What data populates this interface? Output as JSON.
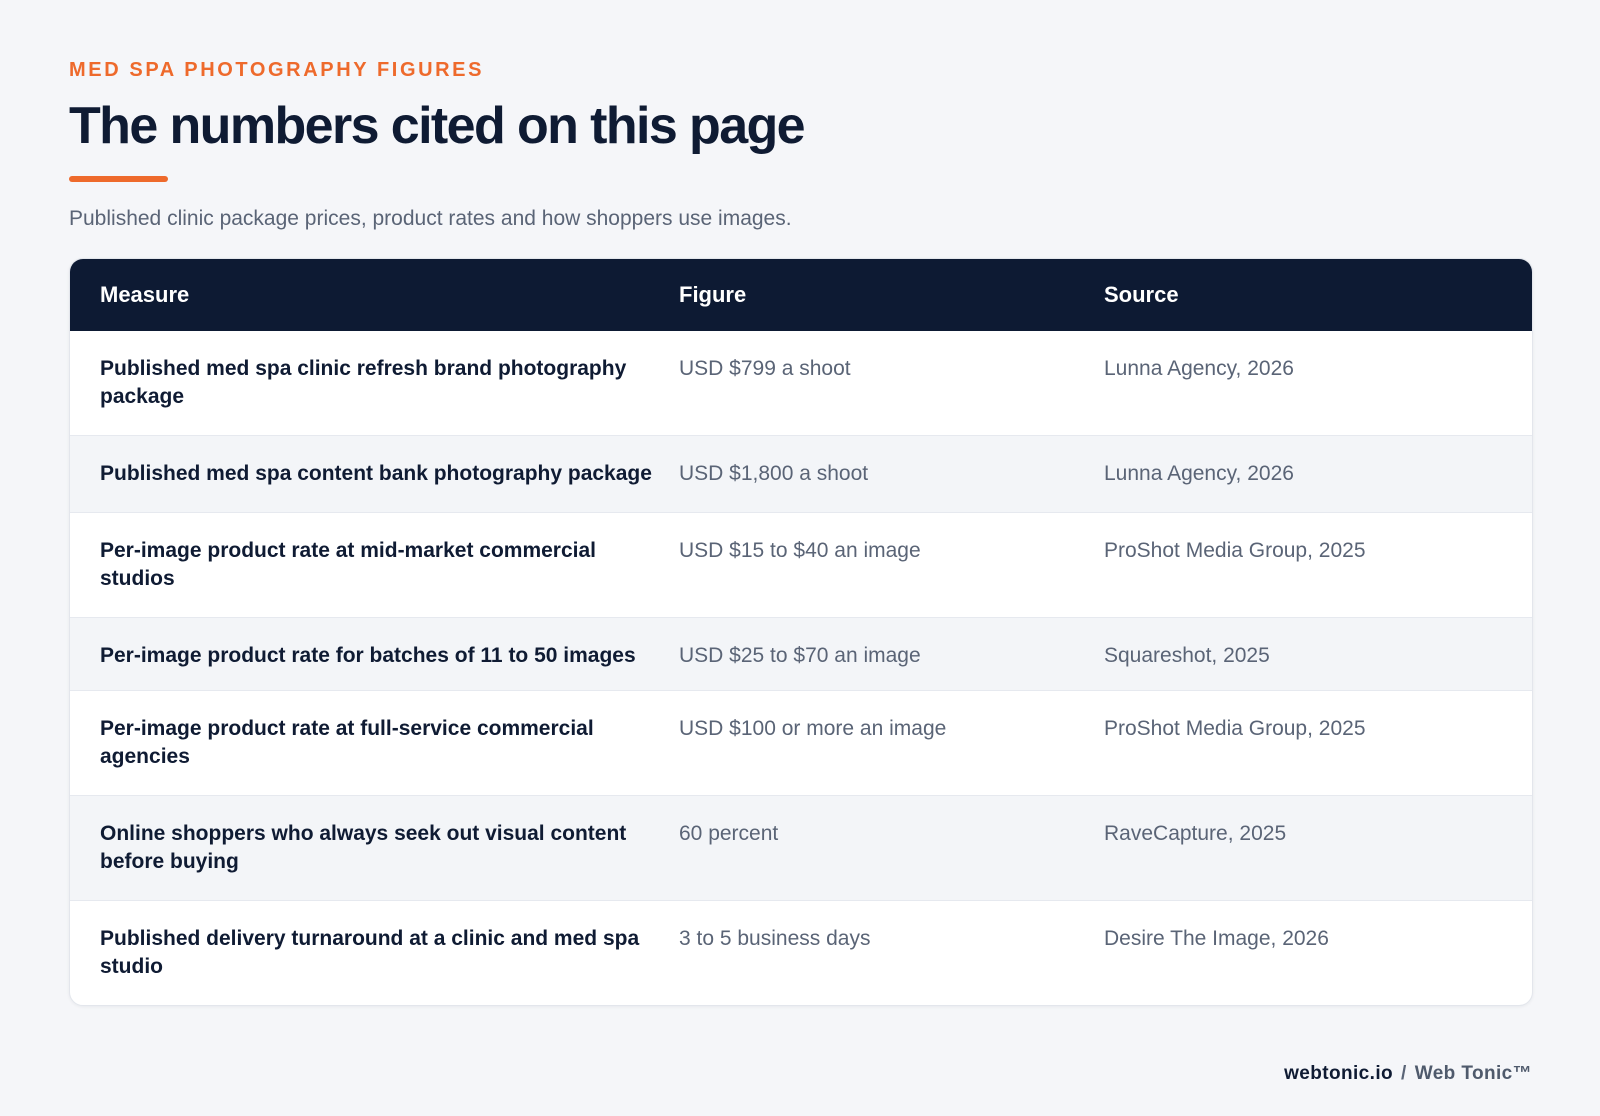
{
  "header": {
    "eyebrow": "MED SPA PHOTOGRAPHY FIGURES",
    "title": "The numbers cited on this page",
    "subtitle": "Published clinic package prices, product rates and how shoppers use images."
  },
  "table": {
    "columns": [
      "Measure",
      "Figure",
      "Source"
    ],
    "rows": [
      {
        "measure": "Published med spa clinic refresh brand photography package",
        "figure": "USD $799 a shoot",
        "source": "Lunna Agency, 2026"
      },
      {
        "measure": "Published med spa content bank photography package",
        "figure": "USD $1,800 a shoot",
        "source": "Lunna Agency, 2026"
      },
      {
        "measure": "Per-image product rate at mid-market commercial studios",
        "figure": "USD $15 to $40 an image",
        "source": "ProShot Media Group, 2025"
      },
      {
        "measure": "Per-image product rate for batches of 11 to 50 images",
        "figure": "USD $25 to $70 an image",
        "source": "Squareshot, 2025"
      },
      {
        "measure": "Per-image product rate at full-service commercial agencies",
        "figure": "USD $100 or more an image",
        "source": "ProShot Media Group, 2025"
      },
      {
        "measure": "Online shoppers who always seek out visual content before buying",
        "figure": "60 percent",
        "source": "RaveCapture, 2025"
      },
      {
        "measure": "Published delivery turnaround at a clinic and med spa studio",
        "figure": "3 to 5 business days",
        "source": "Desire The Image, 2026"
      }
    ]
  },
  "footer": {
    "domain": "webtonic.io",
    "separator": "/",
    "brand": "Web Tonic™"
  },
  "colors": {
    "accent": "#ee6a2c",
    "navy": "#0d1a33",
    "background": "#f5f6f9"
  }
}
